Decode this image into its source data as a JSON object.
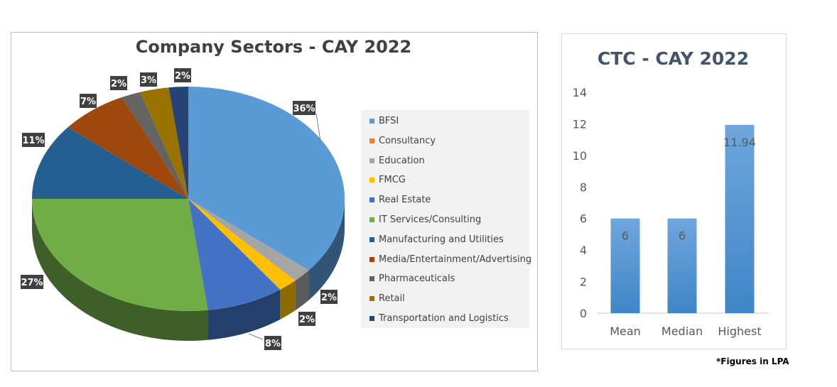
{
  "chart_data": [
    {
      "type": "pie",
      "title": "Company Sectors - CAY 2022",
      "legend_position": "right",
      "style": "3d",
      "slices": [
        {
          "name": "BFSI",
          "value": 36,
          "label": "36%",
          "color": "#5b9bd5"
        },
        {
          "name": "Consultancy",
          "value": 0,
          "label": "",
          "color": "#ed7d31"
        },
        {
          "name": "Education",
          "value": 2,
          "label": "2%",
          "color": "#a5a5a5"
        },
        {
          "name": "FMCG",
          "value": 2,
          "label": "2%",
          "color": "#ffc000"
        },
        {
          "name": "Real Estate",
          "value": 8,
          "label": "8%",
          "color": "#4472c4"
        },
        {
          "name": "IT Services/Consulting",
          "value": 27,
          "label": "27%",
          "color": "#70ad47"
        },
        {
          "name": "Manufacturing and Utilities",
          "value": 11,
          "label": "11%",
          "color": "#255e91"
        },
        {
          "name": "Media/Entertainment/Advertising",
          "value": 7,
          "label": "7%",
          "color": "#9e480e"
        },
        {
          "name": "Pharmaceuticals",
          "value": 2,
          "label": "2%",
          "color": "#636363"
        },
        {
          "name": "Retail",
          "value": 3,
          "label": "3%",
          "color": "#997300"
        },
        {
          "name": "Transportation and Logistics",
          "value": 2,
          "label": "2%",
          "color": "#264478"
        }
      ]
    },
    {
      "type": "bar",
      "title": "CTC - CAY 2022",
      "categories": [
        "Mean",
        "Median",
        "Highest"
      ],
      "values": [
        6,
        6,
        11.94
      ],
      "data_labels": [
        "6",
        "6",
        "11.94"
      ],
      "ylim": [
        0,
        14
      ],
      "yticks": [
        "0",
        "2",
        "4",
        "6",
        "8",
        "10",
        "12",
        "14"
      ],
      "grid": false,
      "color": "#5b9bd5",
      "footnote": "*Figures in LPA"
    }
  ]
}
